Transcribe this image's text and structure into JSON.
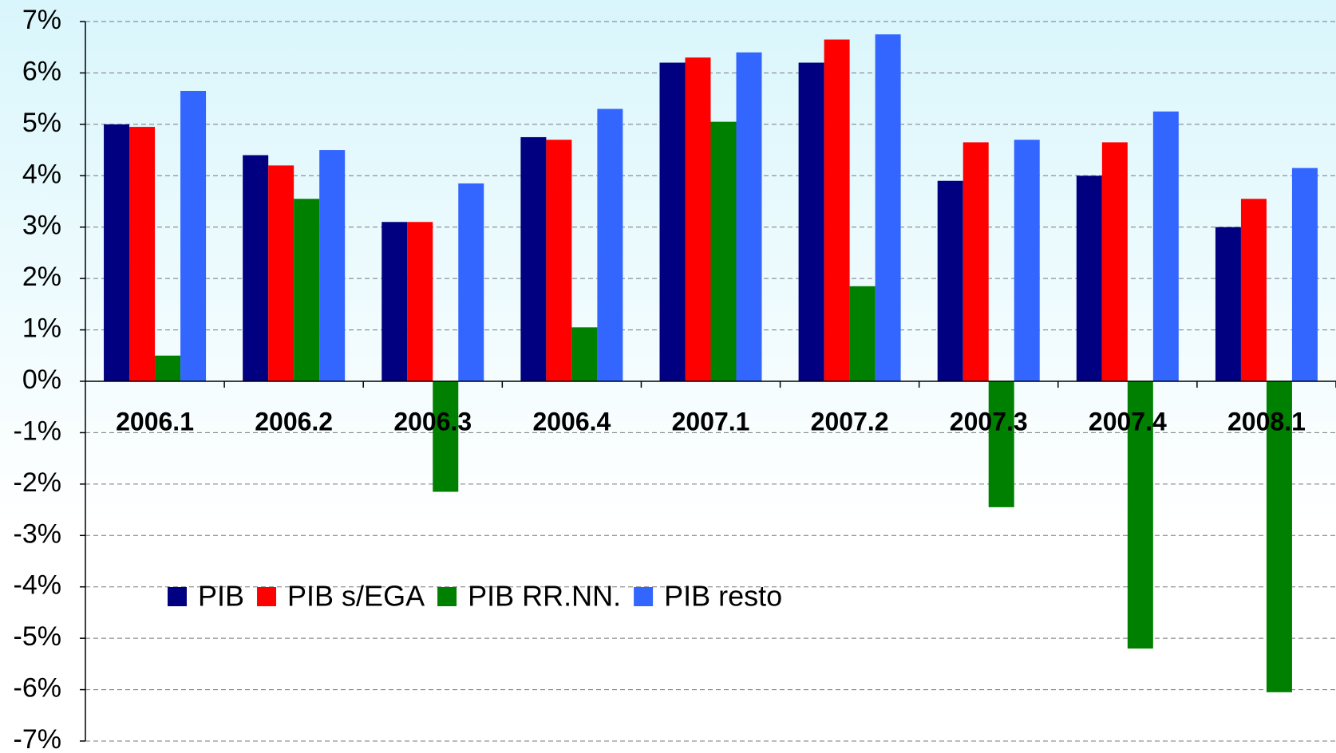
{
  "chart_data": {
    "type": "bar",
    "categories": [
      "2006.1",
      "2006.2",
      "2006.3",
      "2006.4",
      "2007.1",
      "2007.2",
      "2007.3",
      "2007.4",
      "2008.1"
    ],
    "series": [
      {
        "name": "PIB",
        "color": "#000080",
        "values": [
          5.0,
          4.4,
          3.1,
          4.75,
          6.2,
          6.2,
          3.9,
          4.0,
          3.0
        ]
      },
      {
        "name": "PIB s/EGA",
        "color": "#ff0000",
        "values": [
          4.95,
          4.2,
          3.1,
          4.7,
          6.3,
          6.65,
          4.65,
          4.65,
          3.55
        ]
      },
      {
        "name": "PIB RR.NN.",
        "color": "#008000",
        "values": [
          0.5,
          3.55,
          -2.15,
          1.05,
          5.05,
          1.85,
          -2.45,
          -5.2,
          -6.05
        ]
      },
      {
        "name": "PIB resto",
        "color": "#3366ff",
        "values": [
          5.65,
          4.5,
          3.85,
          5.3,
          6.4,
          6.75,
          4.7,
          5.25,
          4.15
        ]
      }
    ],
    "ylim": [
      -7,
      7
    ],
    "yticks": [
      {
        "value": 7,
        "label": "7%"
      },
      {
        "value": 6,
        "label": "6%"
      },
      {
        "value": 5,
        "label": "5%"
      },
      {
        "value": 4,
        "label": "4%"
      },
      {
        "value": 3,
        "label": "3%"
      },
      {
        "value": 2,
        "label": "2%"
      },
      {
        "value": 1,
        "label": "1%"
      },
      {
        "value": 0,
        "label": "0%"
      },
      {
        "value": -1,
        "label": "-1%"
      },
      {
        "value": -2,
        "label": "-2%"
      },
      {
        "value": -3,
        "label": "-3%"
      },
      {
        "value": -4,
        "label": "-4%"
      },
      {
        "value": -5,
        "label": "-5%"
      },
      {
        "value": -6,
        "label": "-6%"
      },
      {
        "value": -7,
        "label": "-7%"
      }
    ],
    "grid": true,
    "legend": "lower-left"
  }
}
